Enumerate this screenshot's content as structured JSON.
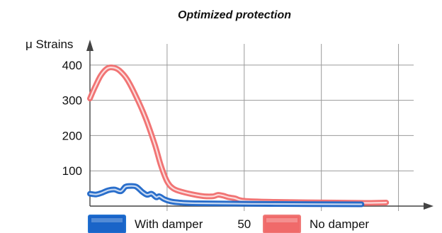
{
  "chart_data": {
    "type": "line",
    "title": "Optimized protection",
    "ylabel": "μ Strains",
    "xlabel": "",
    "ylim": [
      0,
      460
    ],
    "xlim": [
      0,
      120
    ],
    "yticks": [
      100,
      200,
      300,
      400
    ],
    "xticks": [
      {
        "value": 50,
        "label": "50"
      }
    ],
    "gridlines_x": [
      25,
      50,
      75,
      100
    ],
    "gridlines_y": [
      100,
      200,
      300,
      400
    ],
    "grid": true,
    "legend": {
      "placement": "bottom",
      "entries": [
        {
          "name": "With damper",
          "color": "#1f6fd0",
          "fill": "#1a64c8"
        },
        {
          "name": "No damper",
          "color": "#f07a78",
          "fill": "#f06a6a"
        }
      ]
    },
    "series": [
      {
        "name": "No damper",
        "color": "#f06d6d",
        "points": [
          [
            0,
            305
          ],
          [
            1.5,
            335
          ],
          [
            3.5,
            370
          ],
          [
            5.5,
            390
          ],
          [
            7.5,
            393
          ],
          [
            9.5,
            385
          ],
          [
            12,
            360
          ],
          [
            15,
            310
          ],
          [
            18,
            250
          ],
          [
            21,
            175
          ],
          [
            23,
            115
          ],
          [
            25,
            70
          ],
          [
            27,
            50
          ],
          [
            30,
            40
          ],
          [
            34,
            32
          ],
          [
            37,
            28
          ],
          [
            40,
            28
          ],
          [
            41.5,
            32
          ],
          [
            43,
            30
          ],
          [
            45,
            25
          ],
          [
            47,
            22
          ],
          [
            50,
            15
          ],
          [
            60,
            12
          ],
          [
            80,
            10
          ],
          [
            90,
            9
          ],
          [
            96,
            10
          ]
        ]
      },
      {
        "name": "With damper",
        "color": "#1e66c8",
        "points": [
          [
            0,
            35
          ],
          [
            2,
            33
          ],
          [
            4,
            38
          ],
          [
            6,
            45
          ],
          [
            8,
            47
          ],
          [
            10,
            42
          ],
          [
            11.5,
            55
          ],
          [
            13,
            57
          ],
          [
            15,
            55
          ],
          [
            17,
            40
          ],
          [
            18.5,
            32
          ],
          [
            20,
            35
          ],
          [
            21.5,
            25
          ],
          [
            22.5,
            28
          ],
          [
            24,
            20
          ],
          [
            25.5,
            15
          ],
          [
            28,
            11
          ],
          [
            35,
            8
          ],
          [
            60,
            6
          ],
          [
            88,
            5
          ]
        ]
      }
    ]
  }
}
